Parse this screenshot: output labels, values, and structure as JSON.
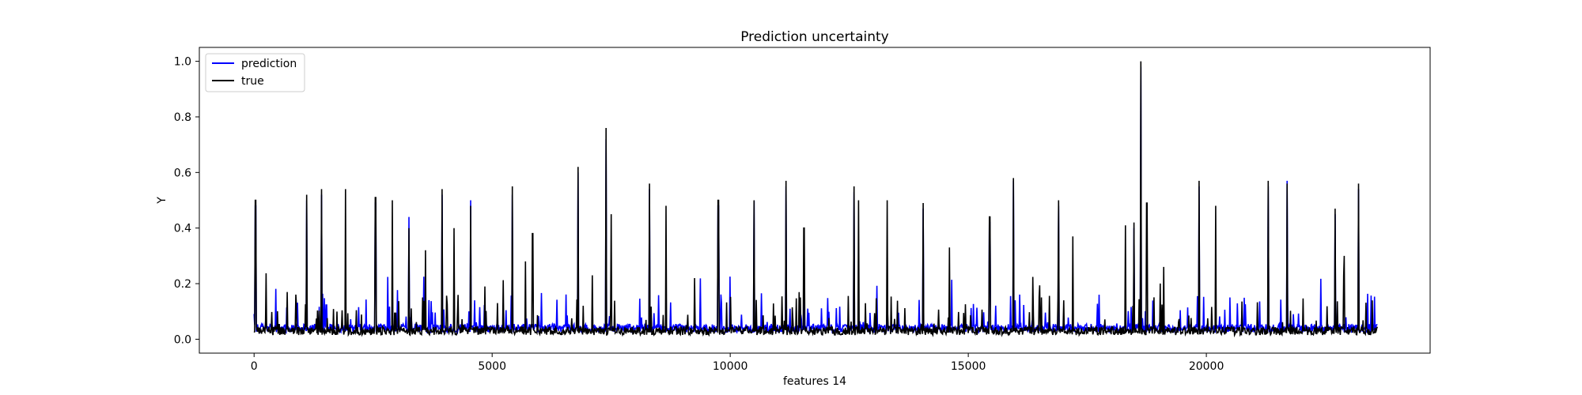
{
  "chart_data": {
    "type": "line",
    "title": "Prediction uncertainty",
    "xlabel": "features 14",
    "ylabel": "Y",
    "xlim": [
      -1150,
      24700
    ],
    "ylim": [
      -0.05,
      1.05
    ],
    "xticks": [
      0,
      5000,
      10000,
      15000,
      20000
    ],
    "yticks": [
      0.0,
      0.2,
      0.4,
      0.6,
      0.8,
      1.0
    ],
    "x_tick_labels": [
      "0",
      "5000",
      "10000",
      "15000",
      "20000"
    ],
    "y_tick_labels": [
      "0.0",
      "0.2",
      "0.4",
      "0.6",
      "0.8",
      "1.0"
    ],
    "grid": false,
    "legend_position": "upper-left",
    "x_range": [
      0,
      23600
    ],
    "series": [
      {
        "name": "prediction",
        "color": "#0000ff",
        "baseline": 0.04,
        "peaks": [
          [
            30,
            0.48
          ],
          [
            1100,
            0.5
          ],
          [
            1420,
            0.52
          ],
          [
            2550,
            0.49
          ],
          [
            3250,
            0.44
          ],
          [
            3950,
            0.52
          ],
          [
            4550,
            0.5
          ],
          [
            5420,
            0.52
          ],
          [
            6800,
            0.6
          ],
          [
            7390,
            0.72
          ],
          [
            8300,
            0.54
          ],
          [
            9750,
            0.48
          ],
          [
            10500,
            0.5
          ],
          [
            11170,
            0.55
          ],
          [
            12600,
            0.53
          ],
          [
            14050,
            0.47
          ],
          [
            15450,
            0.42
          ],
          [
            15950,
            0.57
          ],
          [
            16900,
            0.48
          ],
          [
            18480,
            0.4
          ],
          [
            18620,
            0.98
          ],
          [
            19850,
            0.55
          ],
          [
            21300,
            0.55
          ],
          [
            21700,
            0.57
          ],
          [
            22700,
            0.45
          ],
          [
            23200,
            0.54
          ]
        ]
      },
      {
        "name": "true",
        "color": "#000000",
        "baseline": 0.03,
        "peaks": [
          [
            30,
            0.5
          ],
          [
            700,
            0.17
          ],
          [
            1100,
            0.52
          ],
          [
            1420,
            0.54
          ],
          [
            1920,
            0.54
          ],
          [
            2550,
            0.51
          ],
          [
            2900,
            0.5
          ],
          [
            3250,
            0.4
          ],
          [
            3600,
            0.32
          ],
          [
            3950,
            0.54
          ],
          [
            4200,
            0.4
          ],
          [
            4550,
            0.48
          ],
          [
            4850,
            0.19
          ],
          [
            5420,
            0.55
          ],
          [
            5700,
            0.28
          ],
          [
            5850,
            0.38
          ],
          [
            6800,
            0.62
          ],
          [
            7100,
            0.23
          ],
          [
            7390,
            0.76
          ],
          [
            7500,
            0.45
          ],
          [
            8300,
            0.56
          ],
          [
            8650,
            0.48
          ],
          [
            9250,
            0.22
          ],
          [
            9750,
            0.5
          ],
          [
            10500,
            0.5
          ],
          [
            11170,
            0.57
          ],
          [
            11550,
            0.4
          ],
          [
            12600,
            0.55
          ],
          [
            12700,
            0.5
          ],
          [
            13300,
            0.5
          ],
          [
            14050,
            0.49
          ],
          [
            14600,
            0.33
          ],
          [
            15450,
            0.44
          ],
          [
            15950,
            0.58
          ],
          [
            16900,
            0.5
          ],
          [
            17200,
            0.37
          ],
          [
            18300,
            0.41
          ],
          [
            18480,
            0.42
          ],
          [
            18620,
            1.0
          ],
          [
            18750,
            0.49
          ],
          [
            19100,
            0.26
          ],
          [
            19850,
            0.57
          ],
          [
            20200,
            0.48
          ],
          [
            21300,
            0.57
          ],
          [
            21700,
            0.56
          ],
          [
            22700,
            0.47
          ],
          [
            22900,
            0.3
          ],
          [
            23200,
            0.56
          ]
        ]
      }
    ]
  }
}
